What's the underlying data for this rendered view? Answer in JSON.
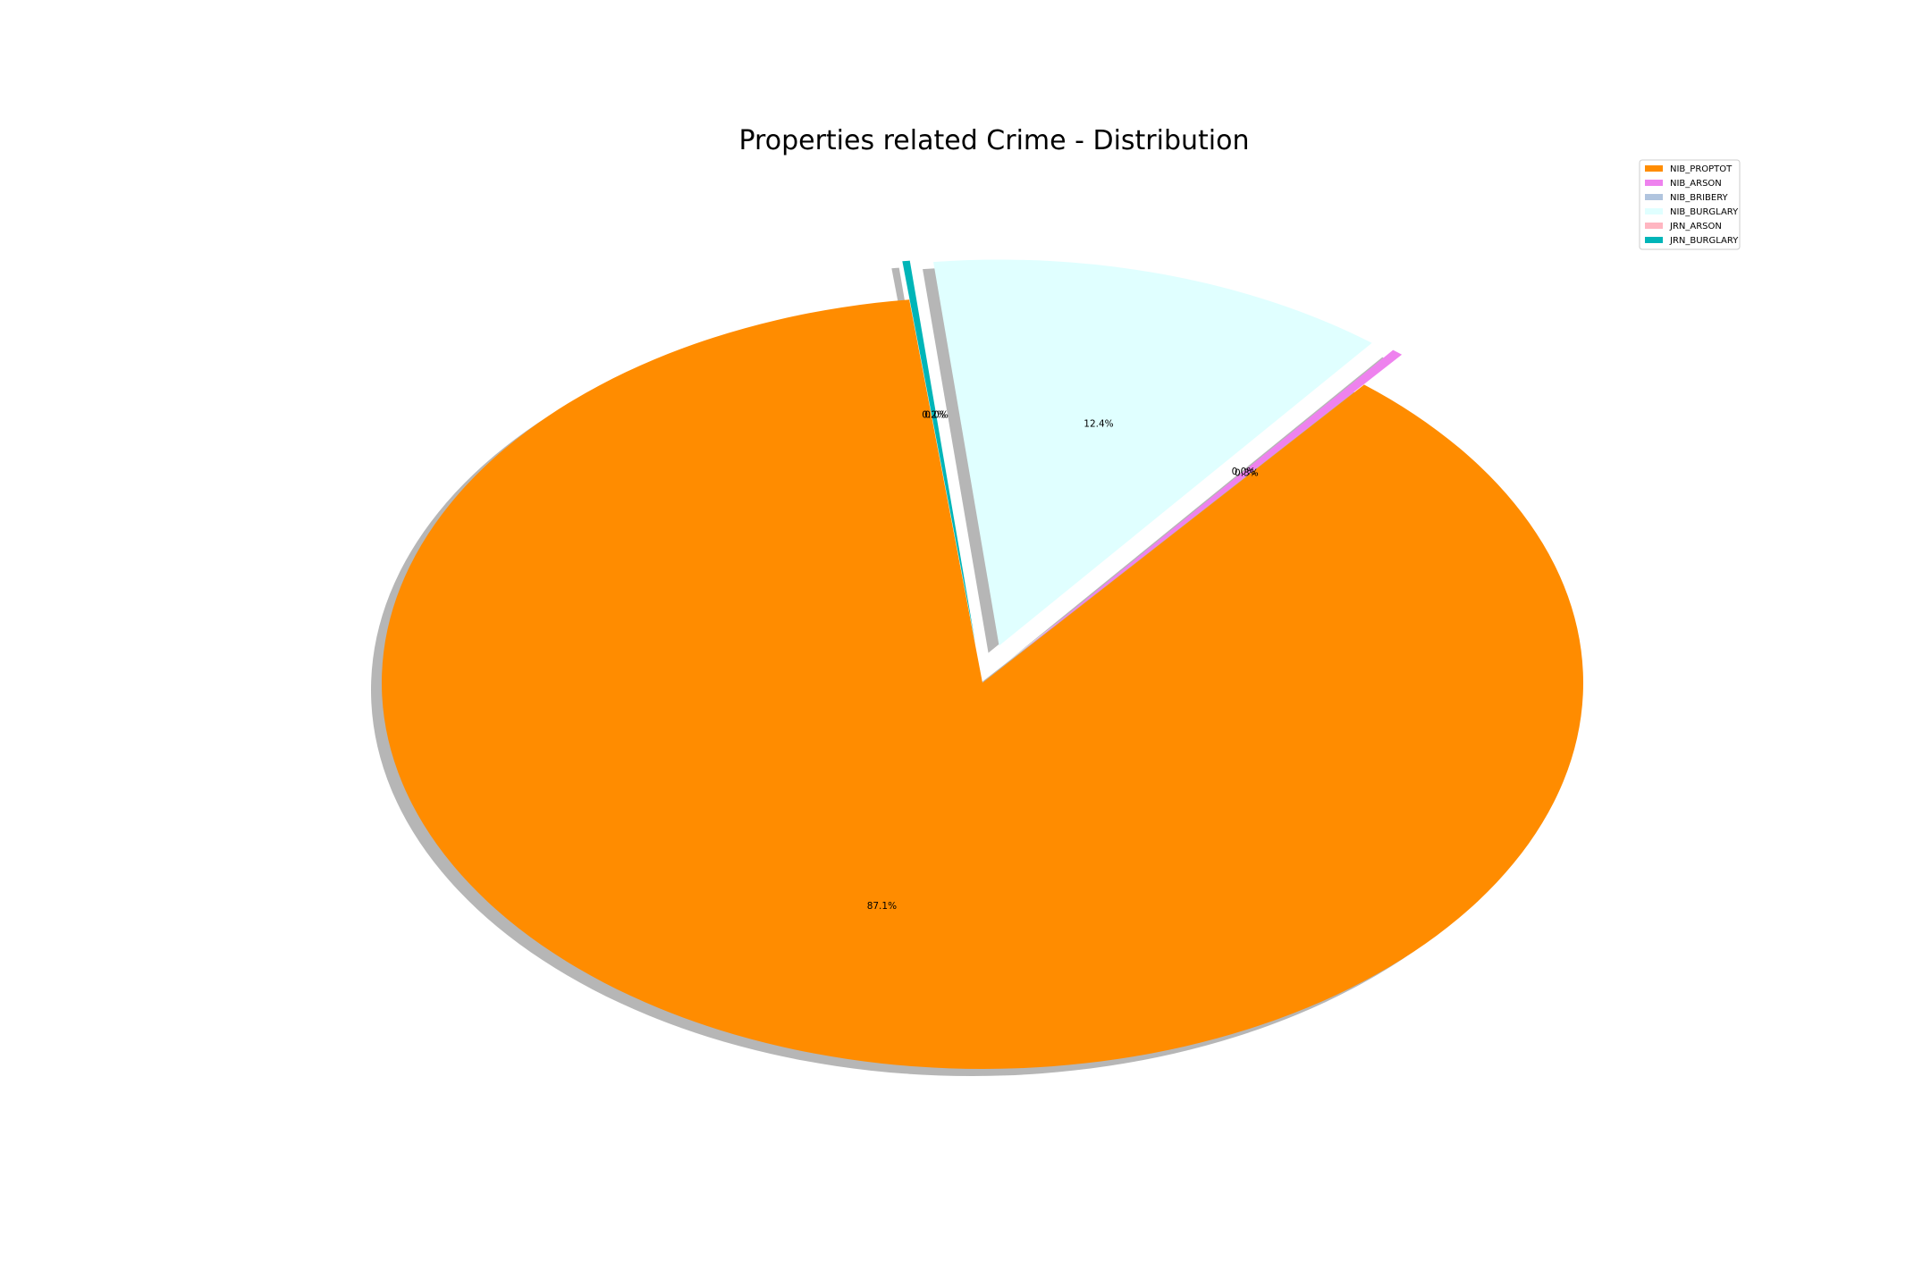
{
  "chart_data": {
    "type": "pie",
    "title": "Properties related Crime - Distribution",
    "slices": [
      {
        "label": "NIB_PROPTOT",
        "value": 87.1,
        "pct_label": "87.1%",
        "color": "#ff8c00",
        "exploded": false
      },
      {
        "label": "NIB_ARSON",
        "value": 0.3,
        "pct_label": "0.3%",
        "color": "#ee82ee",
        "exploded": true
      },
      {
        "label": "NIB_BRIBERY",
        "value": 0.0,
        "pct_label": "0.0%",
        "color": "#b0c4de",
        "exploded": true
      },
      {
        "label": "NIB_BURGLARY",
        "value": 12.4,
        "pct_label": "12.4%",
        "color": "#e0ffff",
        "exploded": true
      },
      {
        "label": "JRN_ARSON",
        "value": 0.0,
        "pct_label": "0.0%",
        "color": "#ffb6c1",
        "exploded": true
      },
      {
        "label": "JRN_BURGLARY",
        "value": 0.2,
        "pct_label": "0.2%",
        "color": "#00b5b8",
        "exploded": true
      }
    ],
    "legend_position": "top-right",
    "shadow": true
  }
}
